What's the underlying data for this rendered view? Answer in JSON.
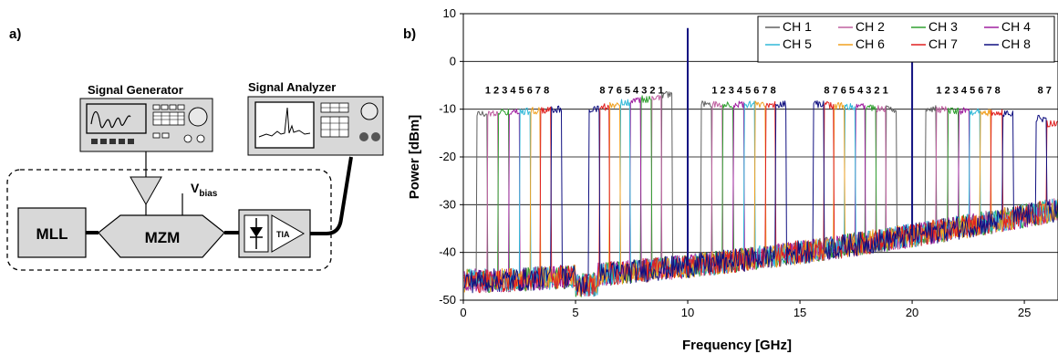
{
  "panel_a": {
    "label": "a)",
    "signal_generator_label": "Signal Generator",
    "signal_analyzer_label": "Signal Analyzer",
    "mll_label": "MLL",
    "mzm_label": "MZM",
    "vbias_main": "V",
    "vbias_sub": "bias",
    "tia_label": "TIA"
  },
  "panel_b": {
    "label": "b)"
  },
  "chart_data": {
    "type": "line",
    "xlabel": "Frequency [GHz]",
    "ylabel": "Power [dBm]",
    "xlim": [
      0,
      26.5
    ],
    "ylim": [
      -50,
      10
    ],
    "x_ticks": [
      0,
      5,
      10,
      15,
      20,
      25
    ],
    "y_ticks": [
      10,
      0,
      -10,
      -20,
      -30,
      -40,
      -50
    ],
    "grid": "horizontal",
    "legend_position": "top-right",
    "series": [
      {
        "name": "CH 1",
        "color": "#606060"
      },
      {
        "name": "CH 2",
        "color": "#c060a0"
      },
      {
        "name": "CH 3",
        "color": "#30a030"
      },
      {
        "name": "CH 4",
        "color": "#a020a0"
      },
      {
        "name": "CH 5",
        "color": "#30b8d8"
      },
      {
        "name": "CH 6",
        "color": "#f0a020"
      },
      {
        "name": "CH 7",
        "color": "#e02020"
      },
      {
        "name": "CH 8",
        "color": "#101080"
      }
    ],
    "groups": [
      {
        "labels": "1 2 3 4 5 6 7 8",
        "label_x": 2.4,
        "start": 0.6,
        "end": 4.4,
        "order": [
          1,
          2,
          3,
          4,
          5,
          6,
          7,
          8
        ],
        "level_start": -11,
        "level_end": -10
      },
      {
        "labels": "8 7 6 5 4 3 2 1",
        "label_x": 7.5,
        "start": 5.6,
        "end": 9.3,
        "order": [
          8,
          7,
          6,
          5,
          4,
          3,
          2,
          1
        ],
        "level_start": -10,
        "level_end": -7
      },
      {
        "labels": "1 2 3 4 5 6 7 8",
        "label_x": 12.5,
        "start": 10.6,
        "end": 14.4,
        "order": [
          1,
          2,
          3,
          4,
          5,
          6,
          7,
          8
        ],
        "level_start": -9,
        "level_end": -9
      },
      {
        "labels": "8 7 6 5 4 3 2 1",
        "label_x": 17.5,
        "start": 15.6,
        "end": 19.3,
        "order": [
          8,
          7,
          6,
          5,
          4,
          3,
          2,
          1
        ],
        "level_start": -9,
        "level_end": -10
      },
      {
        "labels": "1 2 3 4 5 6 7 8",
        "label_x": 22.5,
        "start": 20.6,
        "end": 24.5,
        "order": [
          1,
          2,
          3,
          4,
          5,
          6,
          7,
          8
        ],
        "level_start": -10,
        "level_end": -11
      },
      {
        "labels": "8 7",
        "label_x": 25.9,
        "start": 25.5,
        "end": 26.5,
        "order": [
          8,
          7
        ],
        "level_start": -12,
        "level_end": -13
      }
    ],
    "spikes": [
      {
        "x": 10.0,
        "y": 7
      },
      {
        "x": 20.0,
        "y": 5
      }
    ],
    "noise_floor": {
      "start": -46,
      "end": -31
    }
  }
}
